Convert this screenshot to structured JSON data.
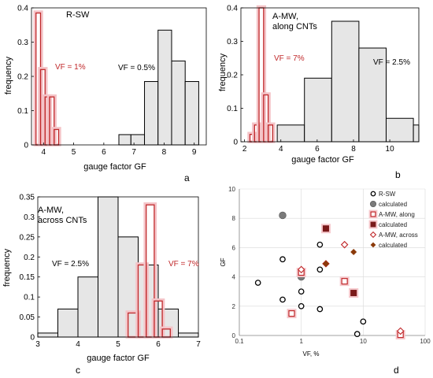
{
  "chart_data": [
    {
      "panel": "a",
      "type": "bar",
      "title": "R-SW",
      "xlabel": "gauge factor GF",
      "ylabel": "frequency",
      "xlim": [
        3.6,
        9.4
      ],
      "ylim": [
        0,
        0.4
      ],
      "xticks": [
        "4",
        "5",
        "6",
        "7",
        "8",
        "9"
      ],
      "yticks": [
        "0",
        "0.1",
        "0.2",
        "0.3",
        "0.4"
      ],
      "series": [
        {
          "label": "VF = 0.5%",
          "color": "#000000",
          "fill": "#e6e6e6",
          "bins": [
            [
              6.5,
              6.9,
              0.03
            ],
            [
              6.9,
              7.35,
              0.03
            ],
            [
              7.35,
              7.8,
              0.185
            ],
            [
              7.8,
              8.25,
              0.335
            ],
            [
              8.25,
              8.7,
              0.245
            ],
            [
              8.7,
              9.15,
              0.185
            ]
          ]
        },
        {
          "label": "VF = 1%",
          "color": "#c0282a",
          "fill": "none",
          "bins": [
            [
              3.75,
              3.9,
              0.385
            ],
            [
              3.9,
              4.05,
              0.22
            ],
            [
              4.05,
              4.2,
              0.14
            ],
            [
              4.2,
              4.35,
              0.14
            ],
            [
              4.35,
              4.5,
              0.045
            ]
          ]
        }
      ]
    },
    {
      "panel": "b",
      "type": "bar",
      "title": "A-MW,\nalong CNTs",
      "xlabel": "gauge factor GF",
      "ylabel": "frequency",
      "xlim": [
        1.8,
        11.6
      ],
      "ylim": [
        0,
        0.4
      ],
      "xticks": [
        "2",
        "4",
        "6",
        "8",
        "10"
      ],
      "yticks": [
        "0",
        "0.1",
        "0.2",
        "0.3",
        "0.4"
      ],
      "series": [
        {
          "label": "VF = 2.5%",
          "color": "#000000",
          "fill": "#e6e6e6",
          "bins": [
            [
              3.8,
              5.3,
              0.05
            ],
            [
              5.3,
              6.8,
              0.19
            ],
            [
              6.8,
              8.3,
              0.36
            ],
            [
              8.3,
              9.8,
              0.28
            ],
            [
              9.8,
              11.3,
              0.07
            ],
            [
              11.3,
              12.8,
              0.05
            ]
          ]
        },
        {
          "label": "VF = 7%",
          "color": "#c0282a",
          "fill": "none",
          "bins": [
            [
              2.3,
              2.55,
              0.022
            ],
            [
              2.55,
              2.8,
              0.05
            ],
            [
              2.8,
              3.05,
              0.4
            ],
            [
              3.05,
              3.3,
              0.14
            ],
            [
              3.3,
              3.55,
              0.05
            ]
          ]
        }
      ]
    },
    {
      "panel": "c",
      "type": "bar",
      "title": "A-MW,\nacross CNTs",
      "xlabel": "gauge factor GF",
      "ylabel": "frequency",
      "xlim": [
        3,
        7
      ],
      "ylim": [
        0,
        0.35
      ],
      "xticks": [
        "3",
        "4",
        "5",
        "6",
        "7"
      ],
      "yticks": [
        "0",
        "0.05",
        "0.1",
        "0.15",
        "0.2",
        "0.25",
        "0.3",
        "0.35"
      ],
      "series": [
        {
          "label": "VF = 2.5%",
          "color": "#000000",
          "fill": "#e6e6e6",
          "bins": [
            [
              3,
              3.5,
              0.01
            ],
            [
              3.5,
              4,
              0.07
            ],
            [
              4,
              4.5,
              0.15
            ],
            [
              4.5,
              5,
              0.35
            ],
            [
              5,
              5.5,
              0.25
            ],
            [
              5.5,
              6,
              0.18
            ],
            [
              6,
              6.5,
              0.07
            ],
            [
              6.5,
              7,
              0.01
            ]
          ]
        },
        {
          "label": "VF = 7%",
          "color": "#c0282a",
          "fill": "none",
          "bins": [
            [
              5.25,
              5.5,
              0.06
            ],
            [
              5.5,
              5.7,
              0.18
            ],
            [
              5.7,
              5.9,
              0.33
            ],
            [
              5.9,
              6.1,
              0.09
            ],
            [
              6.1,
              6.3,
              0.02
            ]
          ]
        }
      ]
    },
    {
      "panel": "d",
      "type": "scatter",
      "xlabel": "VF, %",
      "ylabel": "GF",
      "xscale": "log",
      "xlim": [
        0.1,
        100
      ],
      "ylim": [
        0,
        10
      ],
      "xticks": [
        "0.1",
        "1",
        "10",
        "100"
      ],
      "yticks": [
        "0",
        "2",
        "4",
        "6",
        "8",
        "10"
      ],
      "legend": "top-right",
      "series": [
        {
          "name": "R-SW",
          "marker": "circle-open",
          "color": "#000000",
          "points": [
            [
              0.2,
              3.6
            ],
            [
              0.5,
              5.2
            ],
            [
              0.5,
              2.45
            ],
            [
              1,
              4.1
            ],
            [
              1,
              3.0
            ],
            [
              1,
              2.0
            ],
            [
              2,
              6.2
            ],
            [
              2,
              4.5
            ],
            [
              2,
              1.8
            ],
            [
              8,
              0.1
            ],
            [
              10,
              0.95
            ]
          ]
        },
        {
          "name": "calculated",
          "marker": "circle-filled",
          "color": "#7a7a7a",
          "points": [
            [
              0.5,
              8.2
            ],
            [
              1,
              4.0
            ]
          ]
        },
        {
          "name": "A-MW, along",
          "marker": "square-open",
          "color": "#c0282a",
          "points": [
            [
              0.7,
              1.5
            ],
            [
              1,
              4.3
            ],
            [
              5,
              3.7
            ],
            [
              7,
              2.9
            ],
            [
              40,
              0.05
            ]
          ]
        },
        {
          "name": "calculated",
          "marker": "square-filled",
          "color": "#7a1a1a",
          "points": [
            [
              2.5,
              7.3
            ],
            [
              7,
              2.9
            ]
          ]
        },
        {
          "name": "A-MW, across",
          "marker": "diamond-open",
          "color": "#c0282a",
          "points": [
            [
              1,
              4.5
            ],
            [
              2.5,
              4.9
            ],
            [
              5,
              6.2
            ],
            [
              40,
              0.3
            ]
          ]
        },
        {
          "name": "calculated",
          "marker": "diamond-filled",
          "color": "#8b3a0a",
          "points": [
            [
              2.5,
              4.9
            ],
            [
              7,
              5.7
            ]
          ]
        }
      ]
    }
  ],
  "annotations": {
    "a": {
      "panel_label": "a",
      "vf_red": "VF = 1%",
      "vf_black": "VF = 0.5%"
    },
    "b": {
      "panel_label": "b",
      "vf_red": "VF = 7%",
      "vf_black": "VF = 2.5%"
    },
    "c": {
      "panel_label": "c",
      "vf_red": "VF = 7%",
      "vf_black": "VF = 2.5%"
    },
    "d": {
      "panel_label": "d"
    }
  }
}
